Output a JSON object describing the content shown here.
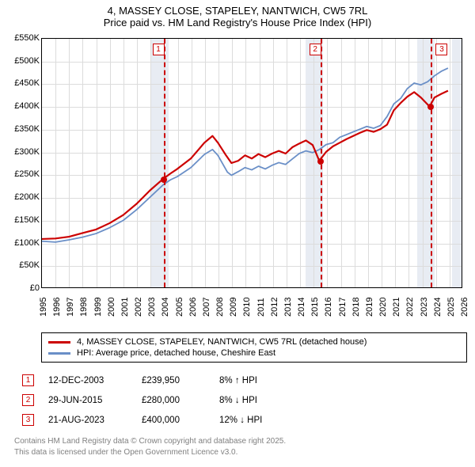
{
  "title": {
    "line1": "4, MASSEY CLOSE, STAPELEY, NANTWICH, CW5 7RL",
    "line2": "Price paid vs. HM Land Registry's House Price Index (HPI)"
  },
  "chart": {
    "type": "line",
    "background_color": "#ffffff",
    "grid_color": "#dcdcdc",
    "shade_color": "#e6eaf2",
    "border_color": "#000000",
    "x_range": [
      1995,
      2026
    ],
    "y_range": [
      0,
      550
    ],
    "y_ticks": [
      0,
      50,
      100,
      150,
      200,
      250,
      300,
      350,
      400,
      450,
      500,
      550
    ],
    "y_tick_labels": [
      "£0",
      "£50K",
      "£100K",
      "£150K",
      "£200K",
      "£250K",
      "£300K",
      "£350K",
      "£400K",
      "£450K",
      "£500K",
      "£550K"
    ],
    "x_ticks": [
      1995,
      1996,
      1997,
      1998,
      1999,
      2000,
      2001,
      2002,
      2003,
      2004,
      2005,
      2006,
      2007,
      2008,
      2009,
      2010,
      2011,
      2012,
      2013,
      2014,
      2015,
      2016,
      2017,
      2018,
      2019,
      2020,
      2021,
      2022,
      2023,
      2024,
      2025,
      2026
    ],
    "shaded_x": [
      [
        2003.0,
        2004.3
      ],
      [
        2014.4,
        2015.7
      ],
      [
        2022.6,
        2023.9
      ],
      [
        2025.2,
        2026.0
      ]
    ],
    "markers": [
      {
        "n": "1",
        "x": 2003.95,
        "y": 239.95,
        "box_dx": -14
      },
      {
        "n": "2",
        "x": 2015.49,
        "y": 280.0,
        "box_dx": -14
      },
      {
        "n": "3",
        "x": 2023.64,
        "y": 400.0,
        "box_dx": 6
      }
    ],
    "series": [
      {
        "name": "price_paid",
        "color": "#cc0000",
        "width": 2.2,
        "points": [
          [
            1995,
            107
          ],
          [
            1996,
            108
          ],
          [
            1997,
            112
          ],
          [
            1998,
            120
          ],
          [
            1999,
            128
          ],
          [
            2000,
            142
          ],
          [
            2001,
            160
          ],
          [
            2002,
            185
          ],
          [
            2003,
            215
          ],
          [
            2003.95,
            239.95
          ],
          [
            2004.5,
            252
          ],
          [
            2005,
            262
          ],
          [
            2006,
            285
          ],
          [
            2007,
            320
          ],
          [
            2007.6,
            335
          ],
          [
            2008,
            320
          ],
          [
            2008.6,
            292
          ],
          [
            2009,
            275
          ],
          [
            2009.5,
            280
          ],
          [
            2010,
            292
          ],
          [
            2010.5,
            285
          ],
          [
            2011,
            295
          ],
          [
            2011.5,
            288
          ],
          [
            2012,
            296
          ],
          [
            2012.5,
            302
          ],
          [
            2013,
            296
          ],
          [
            2013.5,
            310
          ],
          [
            2014,
            318
          ],
          [
            2014.5,
            325
          ],
          [
            2015,
            315
          ],
          [
            2015.49,
            280
          ],
          [
            2016,
            300
          ],
          [
            2016.5,
            312
          ],
          [
            2017,
            320
          ],
          [
            2017.5,
            328
          ],
          [
            2018,
            335
          ],
          [
            2018.5,
            342
          ],
          [
            2019,
            348
          ],
          [
            2019.5,
            344
          ],
          [
            2020,
            350
          ],
          [
            2020.5,
            360
          ],
          [
            2021,
            392
          ],
          [
            2021.5,
            408
          ],
          [
            2022,
            422
          ],
          [
            2022.5,
            432
          ],
          [
            2023,
            420
          ],
          [
            2023.64,
            400
          ],
          [
            2024,
            420
          ],
          [
            2024.5,
            428
          ],
          [
            2025,
            435
          ]
        ]
      },
      {
        "name": "hpi",
        "color": "#6a8fc7",
        "width": 1.8,
        "points": [
          [
            1995,
            102
          ],
          [
            1996,
            100
          ],
          [
            1997,
            105
          ],
          [
            1998,
            111
          ],
          [
            1999,
            119
          ],
          [
            2000,
            132
          ],
          [
            2001,
            148
          ],
          [
            2002,
            172
          ],
          [
            2003,
            200
          ],
          [
            2004,
            228
          ],
          [
            2004.5,
            238
          ],
          [
            2005,
            245
          ],
          [
            2006,
            265
          ],
          [
            2007,
            294
          ],
          [
            2007.6,
            305
          ],
          [
            2008,
            292
          ],
          [
            2008.7,
            255
          ],
          [
            2009,
            248
          ],
          [
            2009.5,
            256
          ],
          [
            2010,
            265
          ],
          [
            2010.5,
            260
          ],
          [
            2011,
            268
          ],
          [
            2011.5,
            262
          ],
          [
            2012,
            270
          ],
          [
            2012.5,
            276
          ],
          [
            2013,
            272
          ],
          [
            2013.5,
            284
          ],
          [
            2014,
            296
          ],
          [
            2014.5,
            302
          ],
          [
            2015,
            298
          ],
          [
            2015.5,
            305
          ],
          [
            2016,
            316
          ],
          [
            2016.5,
            320
          ],
          [
            2017,
            332
          ],
          [
            2017.5,
            338
          ],
          [
            2018,
            344
          ],
          [
            2018.5,
            350
          ],
          [
            2019,
            356
          ],
          [
            2019.5,
            352
          ],
          [
            2020,
            358
          ],
          [
            2020.5,
            378
          ],
          [
            2021,
            406
          ],
          [
            2021.5,
            418
          ],
          [
            2022,
            440
          ],
          [
            2022.5,
            452
          ],
          [
            2023,
            448
          ],
          [
            2023.5,
            455
          ],
          [
            2024,
            468
          ],
          [
            2024.5,
            478
          ],
          [
            2025,
            485
          ]
        ]
      }
    ]
  },
  "legend": {
    "items": [
      {
        "color": "#cc0000",
        "label": "4, MASSEY CLOSE, STAPELEY, NANTWICH, CW5 7RL (detached house)"
      },
      {
        "color": "#6a8fc7",
        "label": "HPI: Average price, detached house, Cheshire East"
      }
    ]
  },
  "transactions": [
    {
      "n": "1",
      "date": "12-DEC-2003",
      "price": "£239,950",
      "pct": "8% ↑ HPI"
    },
    {
      "n": "2",
      "date": "29-JUN-2015",
      "price": "£280,000",
      "pct": "8% ↓ HPI"
    },
    {
      "n": "3",
      "date": "21-AUG-2023",
      "price": "£400,000",
      "pct": "12% ↓ HPI"
    }
  ],
  "footer": {
    "line1": "Contains HM Land Registry data © Crown copyright and database right 2025.",
    "line2": "This data is licensed under the Open Government Licence v3.0."
  }
}
